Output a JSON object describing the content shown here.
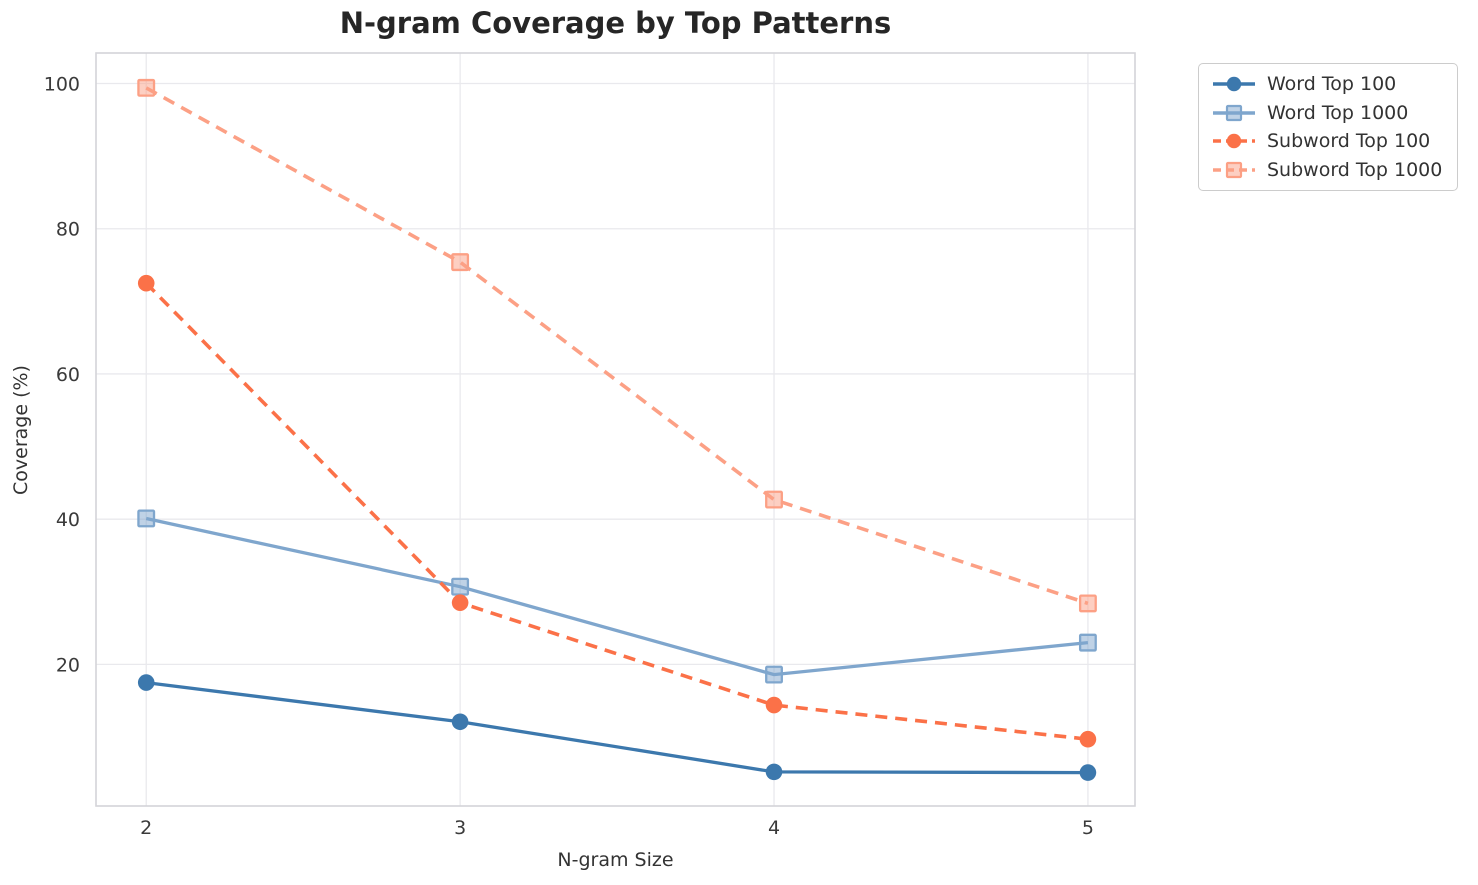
{
  "chart_data": {
    "type": "line",
    "title": "N-gram Coverage by Top Patterns",
    "xlabel": "N-gram Size",
    "ylabel": "Coverage (%)",
    "x": [
      2,
      3,
      4,
      5
    ],
    "x_tick_labels": [
      "2",
      "3",
      "4",
      "5"
    ],
    "y_ticks": [
      20,
      40,
      60,
      80,
      100
    ],
    "y_tick_labels": [
      "20",
      "40",
      "60",
      "80",
      "100"
    ],
    "xlim": [
      1.84,
      5.15
    ],
    "ylim": [
      0.5,
      104.2
    ],
    "grid": true,
    "legend_position": "upper right",
    "series": [
      {
        "name": "Word Top 100",
        "values": [
          17.5,
          12.1,
          5.2,
          5.1
        ],
        "color": "#3c78ad",
        "line_style": "solid",
        "marker": "circle"
      },
      {
        "name": "Word Top 1000",
        "values": [
          40.1,
          30.7,
          18.6,
          23.0
        ],
        "color": "#7fa6cd",
        "line_style": "solid",
        "marker": "square"
      },
      {
        "name": "Subword Top 100",
        "values": [
          72.5,
          28.5,
          14.4,
          9.7
        ],
        "color": "#fb7148",
        "line_style": "dashed",
        "marker": "circle"
      },
      {
        "name": "Subword Top 1000",
        "values": [
          99.4,
          75.4,
          42.7,
          28.4
        ],
        "color": "#fca085",
        "line_style": "dashed",
        "marker": "square"
      }
    ],
    "style": {
      "grid_color": "#e9e9ed",
      "spine_color": "#d4d4d8",
      "title_color": "#262626",
      "tick_color": "#3a3a3a",
      "background": "#ffffff"
    }
  }
}
